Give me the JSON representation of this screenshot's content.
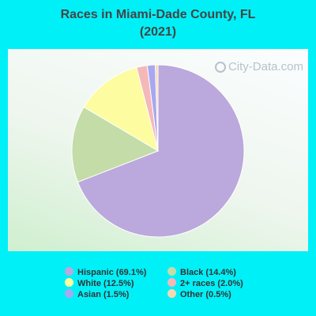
{
  "title_lines": [
    "Races in Miami-Dade County, FL",
    "(2021)"
  ],
  "watermark": "City-Data.com",
  "chart_data": {
    "type": "pie",
    "title": "Races in Miami-Dade County, FL (2021)",
    "slices": [
      {
        "label": "Hispanic (69.1%)",
        "value": 69.1,
        "color": "#bba8dc"
      },
      {
        "label": "Black (14.4%)",
        "value": 14.4,
        "color": "#c4dca8"
      },
      {
        "label": "White (12.5%)",
        "value": 12.5,
        "color": "#fdfca0"
      },
      {
        "label": "2+ races (2.0%)",
        "value": 2.0,
        "color": "#f5b8b8"
      },
      {
        "label": "Asian (1.5%)",
        "value": 1.5,
        "color": "#a8a8f0"
      },
      {
        "label": "Other (0.5%)",
        "value": 0.5,
        "color": "#f6d8b0"
      }
    ],
    "legend_placement": "bottom"
  }
}
